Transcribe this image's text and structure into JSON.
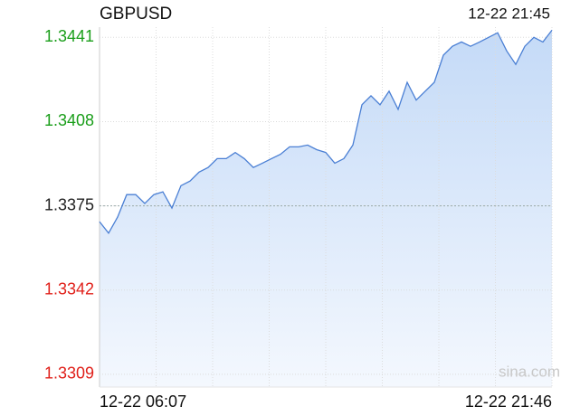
{
  "chart_data": {
    "type": "line",
    "title": "GBPUSD",
    "timestamp": "12-22 21:45",
    "watermark": "sina.com",
    "categories": [
      "12-22 06:07",
      null,
      null,
      null,
      null,
      null,
      null,
      null,
      null,
      null,
      null,
      null,
      null,
      null,
      null,
      null,
      null,
      null,
      null,
      null,
      null,
      null,
      null,
      null,
      null,
      null,
      null,
      null,
      null,
      null,
      null,
      null,
      null,
      null,
      null,
      null,
      null,
      null,
      null,
      null,
      null,
      null,
      null,
      null,
      null,
      null,
      null,
      null,
      null,
      null,
      "12-22 21:46"
    ],
    "series": [
      {
        "name": "GBPUSD",
        "color": "#4a7fd4",
        "values": [
          1.33688,
          1.33643,
          1.33706,
          1.33794,
          1.33794,
          1.33759,
          1.33794,
          1.33805,
          1.33741,
          1.33829,
          1.33847,
          1.33882,
          1.339,
          1.33935,
          1.33935,
          1.33959,
          1.33935,
          1.339,
          1.33917,
          1.33935,
          1.33952,
          1.33981,
          1.33981,
          1.33988,
          1.3397,
          1.33959,
          1.33917,
          1.33935,
          1.33988,
          1.34146,
          1.34181,
          1.34146,
          1.34199,
          1.34128,
          1.34234,
          1.34164,
          1.34199,
          1.34234,
          1.3434,
          1.34375,
          1.34392,
          1.34375,
          1.34392,
          1.3441,
          1.34428,
          1.34357,
          1.34304,
          1.34375,
          1.3441,
          1.34392,
          1.34438
        ]
      }
    ],
    "ylim": [
      1.3304,
      1.3445
    ],
    "yticks": [
      1.3309,
      1.3342,
      1.3375,
      1.3408,
      1.3441
    ],
    "reference": 1.3375,
    "up_color": "#1a9e1a",
    "down_color": "#e0201a",
    "flat_color": "#222222",
    "grid": true
  }
}
